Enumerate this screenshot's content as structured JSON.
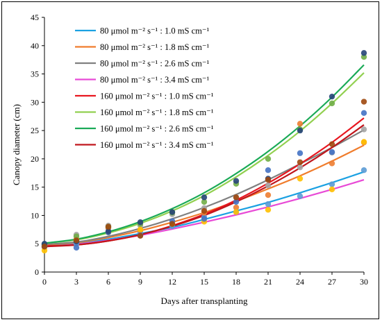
{
  "chart_data": {
    "type": "scatter",
    "xlabel": "Days after transplanting",
    "ylabel": "Canopy diameter (cm)",
    "xlim": [
      0,
      30
    ],
    "ylim": [
      0,
      45
    ],
    "xticks": [
      0,
      3,
      6,
      9,
      12,
      15,
      18,
      21,
      24,
      27,
      30
    ],
    "yticks": [
      0,
      5,
      10,
      15,
      20,
      25,
      30,
      35,
      40,
      45
    ],
    "legend_position": "top-left",
    "grid": false,
    "trendlines": "polynomial",
    "series": [
      {
        "name": "80 μmol m⁻² s⁻¹ : 1.0 mS cm⁻¹",
        "line_color": "#1BA1E2",
        "marker_color": "#5B9BD5",
        "x": [
          0,
          3,
          6,
          9,
          12,
          15,
          18,
          21,
          24,
          27,
          30
        ],
        "y": [
          4.4,
          5.0,
          7.8,
          7.0,
          8.1,
          9.7,
          10.6,
          12.0,
          13.4,
          15.5,
          18.0
        ],
        "trend": [
          4.6,
          5.0,
          5.8,
          6.8,
          7.9,
          9.3,
          10.8,
          12.3,
          14.0,
          15.8,
          17.7
        ]
      },
      {
        "name": "80 μmol m⁻² s⁻¹ : 1.8 mS cm⁻¹",
        "line_color": "#F07C2C",
        "marker_color": "#ED7D31",
        "x": [
          0,
          3,
          6,
          9,
          12,
          15,
          18,
          21,
          24,
          27,
          30
        ],
        "y": [
          4.8,
          5.8,
          7.8,
          7.4,
          8.6,
          10.5,
          11.4,
          13.6,
          26.2,
          19.2,
          22.9
        ],
        "trend": [
          4.8,
          5.2,
          6.1,
          7.3,
          8.8,
          10.5,
          12.5,
          14.7,
          17.0,
          19.6,
          22.4
        ]
      },
      {
        "name": "80 μmol m⁻² s⁻¹ : 2.6 mS cm⁻¹",
        "line_color": "#808080",
        "marker_color": "#A5A5A5",
        "x": [
          0,
          3,
          6,
          9,
          12,
          15,
          18,
          21,
          24,
          27,
          30
        ],
        "y": [
          4.8,
          6.6,
          8.2,
          8.2,
          10.2,
          11.3,
          13.2,
          15.3,
          18.5,
          21.1,
          25.2
        ],
        "trend": [
          4.9,
          5.3,
          6.3,
          7.7,
          9.4,
          11.4,
          13.7,
          16.3,
          19.1,
          22.0,
          25.1
        ]
      },
      {
        "name": "80 μmol m⁻² s⁻¹ : 3.4 mS cm⁻¹",
        "line_color": "#E84AD6",
        "marker_color": "#FFC000",
        "x": [
          0,
          3,
          6,
          9,
          12,
          15,
          18,
          21,
          24,
          27,
          30
        ],
        "y": [
          3.8,
          5.6,
          7.0,
          7.5,
          8.5,
          8.9,
          10.6,
          11.0,
          16.5,
          14.6,
          23.0
        ],
        "trend": [
          4.5,
          4.9,
          5.6,
          6.5,
          7.6,
          8.8,
          10.1,
          11.5,
          13.0,
          14.6,
          16.3
        ]
      },
      {
        "name": "160 μmol m⁻² s⁻¹ : 1.0 mS cm⁻¹",
        "line_color": "#E8161F",
        "marker_color": "#4472C4",
        "x": [
          0,
          3,
          6,
          9,
          12,
          15,
          18,
          21,
          24,
          27,
          30
        ],
        "y": [
          4.6,
          4.3,
          7.0,
          6.5,
          9.0,
          9.4,
          12.4,
          18.0,
          21.0,
          21.2,
          28.1
        ],
        "trend": [
          4.6,
          4.8,
          5.5,
          6.6,
          8.2,
          10.2,
          12.7,
          15.7,
          19.1,
          22.9,
          27.2
        ]
      },
      {
        "name": "160 μmol m⁻² s⁻¹ : 1.8 mS cm⁻¹",
        "line_color": "#92D050",
        "marker_color": "#70AD47",
        "x": [
          0,
          3,
          6,
          9,
          12,
          15,
          18,
          21,
          24,
          27,
          30
        ],
        "y": [
          4.9,
          6.3,
          8.0,
          8.5,
          10.5,
          12.4,
          15.6,
          20.0,
          25.2,
          29.8,
          38.0
        ],
        "trend": [
          5.1,
          5.7,
          6.9,
          8.6,
          10.8,
          13.5,
          16.8,
          20.6,
          24.9,
          29.8,
          35.2
        ]
      },
      {
        "name": "160 μmol m⁻² s⁻¹ : 2.6 mS cm⁻¹",
        "line_color": "#1AAA57",
        "marker_color": "#264478",
        "x": [
          0,
          3,
          6,
          9,
          12,
          15,
          18,
          21,
          24,
          27,
          30
        ],
        "y": [
          5.0,
          5.4,
          7.2,
          8.8,
          10.6,
          13.2,
          16.1,
          16.5,
          25.0,
          31.0,
          38.7
        ],
        "trend": [
          5.1,
          5.8,
          7.1,
          8.9,
          11.2,
          14.0,
          17.4,
          21.3,
          25.8,
          30.9,
          36.6
        ]
      },
      {
        "name": "160 μmol m⁻² s⁻¹ : 3.4 mS cm⁻¹",
        "line_color": "#C0161C",
        "marker_color": "#9E480E",
        "x": [
          0,
          3,
          6,
          9,
          12,
          15,
          18,
          21,
          24,
          27,
          30
        ],
        "y": [
          4.5,
          5.6,
          8.0,
          6.4,
          8.5,
          10.8,
          13.2,
          16.3,
          19.4,
          22.6,
          30.1
        ],
        "trend": [
          4.5,
          4.8,
          5.5,
          6.6,
          8.1,
          10.0,
          12.4,
          15.2,
          18.4,
          22.0,
          26.0
        ]
      }
    ]
  }
}
